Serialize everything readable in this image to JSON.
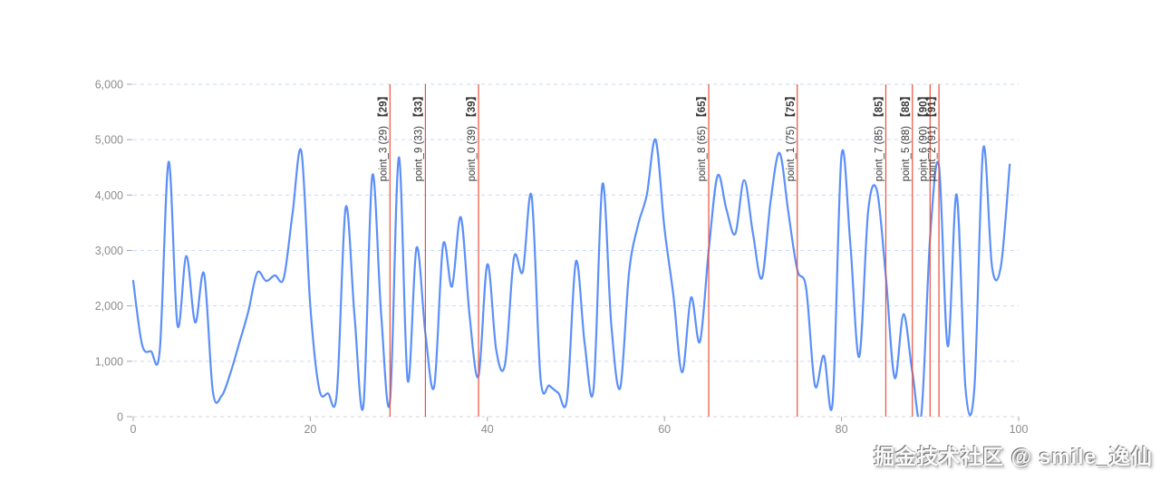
{
  "watermark": "掘金技术社区 @ smile_逸仙",
  "colors": {
    "line": "#5b8ff9",
    "marker_line": "#e8503c",
    "grid": "#c7dbf6",
    "zero_line": "#d4d4d4",
    "tick": "#a8a8a8",
    "axis_label": "#8c8c8c",
    "marker_label": "#3a3a3a"
  },
  "chart_data": {
    "type": "line",
    "smooth": true,
    "title": "",
    "xlabel": "",
    "ylabel": "",
    "legend": "none",
    "grid": "horizontal-dashed",
    "xlim": [
      0,
      100
    ],
    "ylim": [
      0,
      6000
    ],
    "x_ticks": [
      {
        "v": 0,
        "label": "0"
      },
      {
        "v": 20,
        "label": "20"
      },
      {
        "v": 40,
        "label": "40"
      },
      {
        "v": 60,
        "label": "60"
      },
      {
        "v": 80,
        "label": "80"
      },
      {
        "v": 100,
        "label": "100"
      }
    ],
    "y_ticks": [
      {
        "v": 0,
        "label": "0"
      },
      {
        "v": 1000,
        "label": "1,000"
      },
      {
        "v": 2000,
        "label": "2,000"
      },
      {
        "v": 3000,
        "label": "3,000"
      },
      {
        "v": 4000,
        "label": "4,000"
      },
      {
        "v": 5000,
        "label": "5,000"
      },
      {
        "v": 6000,
        "label": "6,000"
      }
    ],
    "x_start": 0,
    "x_step": 1,
    "values": [
      2450,
      1300,
      1180,
      1200,
      4600,
      1650,
      2900,
      1700,
      2580,
      450,
      380,
      800,
      1340,
      1900,
      2600,
      2450,
      2550,
      2500,
      3680,
      4780,
      2000,
      500,
      420,
      430,
      3780,
      1800,
      200,
      4350,
      1850,
      270,
      4680,
      650,
      3050,
      1500,
      550,
      3100,
      2350,
      3600,
      1800,
      730,
      2750,
      1200,
      950,
      2870,
      2620,
      3980,
      700,
      560,
      430,
      330,
      2800,
      1300,
      500,
      4200,
      1650,
      520,
      2600,
      3450,
      4000,
      5000,
      3400,
      2200,
      800,
      2150,
      1350,
      3000,
      4350,
      3740,
      3300,
      4270,
      3300,
      2500,
      3900,
      4760,
      3680,
      2650,
      2320,
      560,
      1100,
      270,
      4720,
      3100,
      1080,
      3700,
      4080,
      2530,
      700,
      1850,
      800,
      20,
      3230,
      4530,
      1270,
      4010,
      510,
      520,
      4840,
      2700,
      2720,
      4550
    ],
    "markers": [
      {
        "name": "point_3",
        "x": 29,
        "label": "point_3 (29)",
        "tag": "【29】"
      },
      {
        "name": "point_9",
        "x": 33,
        "label": "point_9 (33)",
        "tag": "【33】"
      },
      {
        "name": "point_0",
        "x": 39,
        "label": "point_0 (39)",
        "tag": "【39】"
      },
      {
        "name": "point_8",
        "x": 65,
        "label": "point_8 (65)",
        "tag": "【65】"
      },
      {
        "name": "point_1",
        "x": 75,
        "label": "point_1 (75)",
        "tag": "【75】"
      },
      {
        "name": "point_7",
        "x": 85,
        "label": "point_7 (85)",
        "tag": "【85】"
      },
      {
        "name": "point_5",
        "x": 88,
        "label": "point_5 (88)",
        "tag": "【88】"
      },
      {
        "name": "point_6",
        "x": 90,
        "label": "point_6 (90)",
        "tag": "【90】"
      },
      {
        "name": "point_2",
        "x": 91,
        "label": "point_2 (91)",
        "tag": "【91】"
      }
    ]
  }
}
